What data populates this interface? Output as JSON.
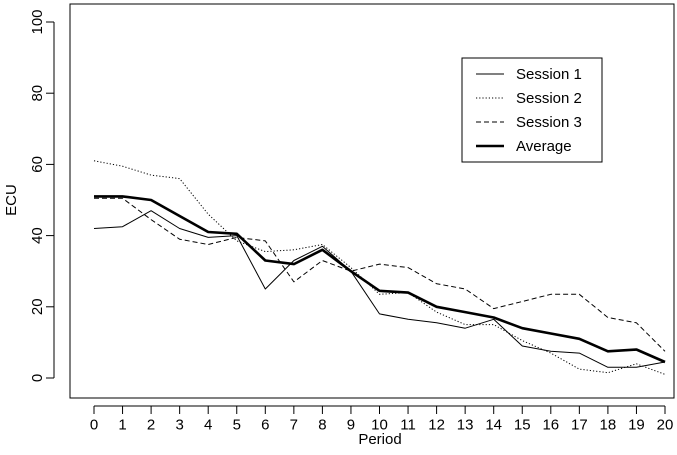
{
  "chart_data": {
    "type": "line",
    "title": "",
    "xlabel": "Period",
    "ylabel": "ECU",
    "xlim": [
      0,
      20
    ],
    "ylim": [
      0,
      100
    ],
    "x_ticks": [
      0,
      1,
      2,
      3,
      4,
      5,
      6,
      7,
      8,
      9,
      10,
      11,
      12,
      13,
      14,
      15,
      16,
      17,
      18,
      19,
      20
    ],
    "y_ticks": [
      0,
      20,
      40,
      60,
      80,
      100
    ],
    "x": [
      0,
      1,
      2,
      3,
      4,
      5,
      6,
      7,
      8,
      9,
      10,
      11,
      12,
      13,
      14,
      15,
      16,
      17,
      18,
      19,
      20
    ],
    "series": [
      {
        "name": "Session 1",
        "style": "solid",
        "values": [
          42,
          42.5,
          47,
          42,
          39.5,
          40,
          25,
          33,
          37,
          30,
          18,
          16.5,
          15.5,
          14,
          16.5,
          9,
          7.5,
          7,
          3,
          3,
          4.5
        ]
      },
      {
        "name": "Session 2",
        "style": "dotted",
        "values": [
          61,
          59.5,
          57,
          56,
          46,
          38.5,
          35.5,
          36,
          37.5,
          31,
          23.5,
          24,
          18.5,
          15,
          15,
          10.5,
          7,
          2.5,
          1.5,
          4,
          1
        ]
      },
      {
        "name": "Session 3",
        "style": "dashed",
        "values": [
          50.5,
          50.5,
          44.5,
          39,
          37.5,
          39.5,
          38.5,
          27,
          33,
          30,
          32,
          31,
          26.5,
          25,
          19.5,
          21.5,
          23.5,
          23.5,
          17,
          15.5,
          7.5
        ]
      },
      {
        "name": "Average",
        "style": "bold",
        "values": [
          51,
          51,
          50,
          45.5,
          41,
          40.5,
          33,
          32,
          36,
          30,
          24.5,
          24,
          20,
          18.5,
          17,
          14,
          12.5,
          11,
          7.5,
          8,
          4.5
        ]
      }
    ],
    "legend_position": "top-right"
  }
}
